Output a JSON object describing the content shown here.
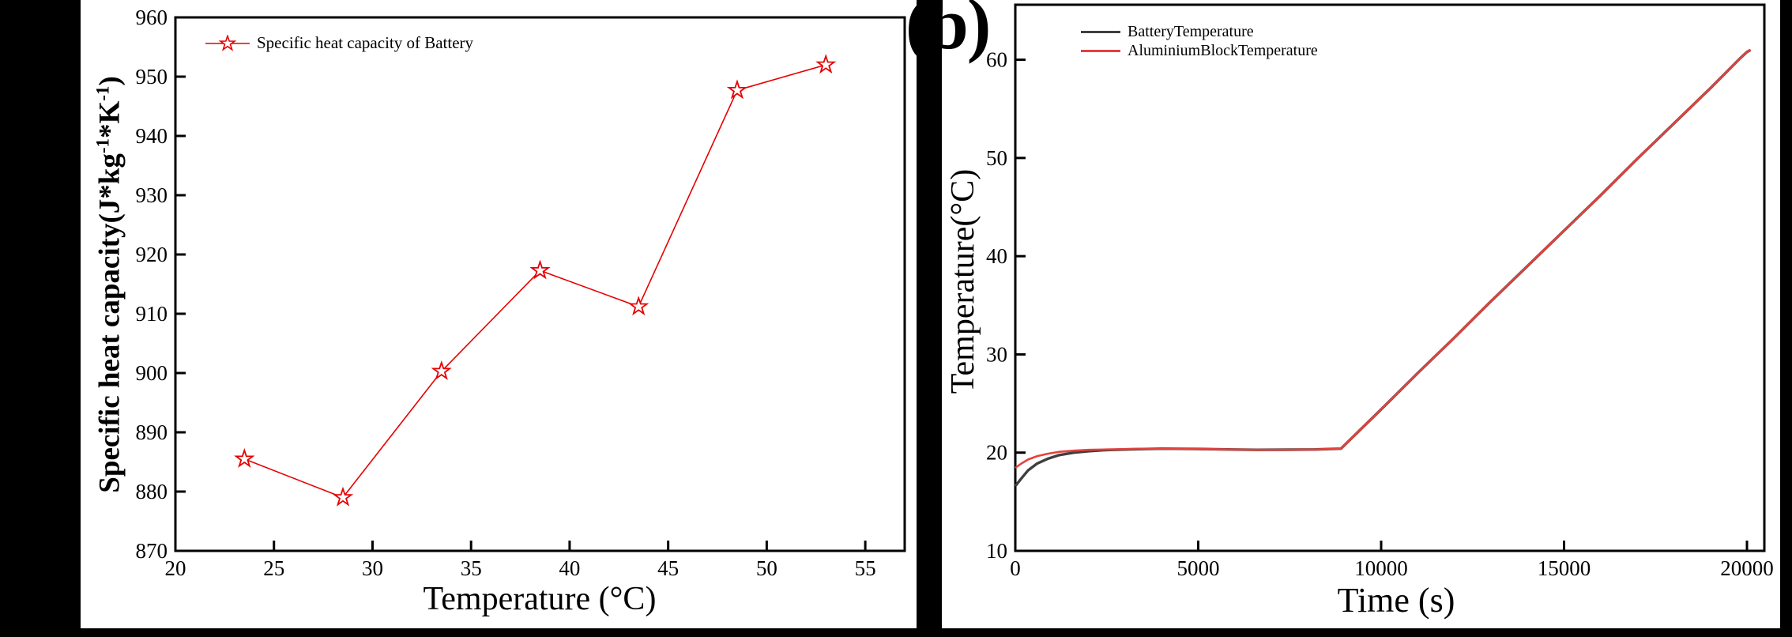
{
  "figure": {
    "panel_label": "(b)"
  },
  "colors": {
    "figure_bg": "#000000",
    "panel_bg": "#ffffff",
    "axis": "#000000",
    "chart1_series_red": "#e60000",
    "battery_line_black": "#3f3f3f",
    "aluminium_line_red": "#e6413c"
  },
  "chart_data": [
    {
      "type": "line",
      "title": "",
      "xlabel": "Temperature (°C)",
      "ylabel": "Specific heat capacity(J*kg-1*K-1)",
      "ylabel_parts": {
        "p1": "Specific heat capacity(J*kg",
        "s1": "-1",
        "p2": "*K",
        "s2": "-1",
        "p3": ")"
      },
      "legend": [
        "Specific heat capacity of Battery"
      ],
      "legend_position": "top-left",
      "marker": "open-star",
      "color": "#e60000",
      "x": [
        23.5,
        28.5,
        33.5,
        38.5,
        43.5,
        48.5,
        53
      ],
      "y": [
        885.5,
        879,
        900.3,
        917.3,
        911.2,
        947.7,
        952
      ],
      "xlim": [
        20,
        57
      ],
      "ylim": [
        870,
        960
      ],
      "x_ticks": [
        20,
        25,
        30,
        35,
        40,
        45,
        50,
        55
      ],
      "y_ticks": [
        870,
        880,
        890,
        900,
        910,
        920,
        930,
        940,
        950,
        960
      ],
      "grid": false
    },
    {
      "type": "line",
      "title": "",
      "xlabel": "Time (s)",
      "ylabel": "Temperature(°C)",
      "legend": [
        "BatteryTemperature",
        "AluminiumBlockTemperature"
      ],
      "legend_position": "top-left",
      "xlim": [
        0,
        20475
      ],
      "ylim": [
        10,
        65.6
      ],
      "x_ticks": [
        0,
        5000,
        10000,
        15000,
        20000
      ],
      "y_ticks": [
        10,
        20,
        30,
        40,
        50,
        60
      ],
      "grid": false,
      "series": [
        {
          "name": "BatteryTemperature",
          "color": "#3f3f3f",
          "points": [
            [
              0,
              16.6
            ],
            [
              150,
              17.3
            ],
            [
              350,
              18.2
            ],
            [
              600,
              18.9
            ],
            [
              900,
              19.4
            ],
            [
              1200,
              19.75
            ],
            [
              1600,
              20.0
            ],
            [
              2000,
              20.15
            ],
            [
              2500,
              20.27
            ],
            [
              3200,
              20.35
            ],
            [
              4000,
              20.4
            ],
            [
              5000,
              20.37
            ],
            [
              5800,
              20.32
            ],
            [
              6600,
              20.28
            ],
            [
              7400,
              20.3
            ],
            [
              8200,
              20.32
            ],
            [
              8900,
              20.4
            ],
            [
              10000,
              24.4
            ],
            [
              11000,
              28.1
            ],
            [
              12000,
              31.7
            ],
            [
              13000,
              35.4
            ],
            [
              14000,
              39.0
            ],
            [
              15000,
              42.6
            ],
            [
              16000,
              46.2
            ],
            [
              17000,
              49.9
            ],
            [
              18000,
              53.5
            ],
            [
              19000,
              57.1
            ],
            [
              19800,
              60.1
            ],
            [
              20000,
              60.8
            ],
            [
              20100,
              61.0
            ]
          ]
        },
        {
          "name": "AluminiumBlockTemperature",
          "color": "#e6413c",
          "points": [
            [
              0,
              18.45
            ],
            [
              150,
              18.85
            ],
            [
              350,
              19.3
            ],
            [
              600,
              19.65
            ],
            [
              900,
              19.9
            ],
            [
              1200,
              20.08
            ],
            [
              1600,
              20.2
            ],
            [
              2000,
              20.28
            ],
            [
              2500,
              20.32
            ],
            [
              3200,
              20.38
            ],
            [
              4000,
              20.4
            ],
            [
              5000,
              20.37
            ],
            [
              5800,
              20.32
            ],
            [
              6600,
              20.28
            ],
            [
              7400,
              20.3
            ],
            [
              8200,
              20.32
            ],
            [
              8900,
              20.4
            ],
            [
              10000,
              24.4
            ],
            [
              11000,
              28.1
            ],
            [
              12000,
              31.7
            ],
            [
              13000,
              35.4
            ],
            [
              14000,
              39.0
            ],
            [
              15000,
              42.6
            ],
            [
              16000,
              46.2
            ],
            [
              17000,
              49.9
            ],
            [
              18000,
              53.5
            ],
            [
              19000,
              57.1
            ],
            [
              19800,
              60.1
            ],
            [
              20000,
              60.8
            ],
            [
              20100,
              61.0
            ]
          ]
        }
      ]
    }
  ]
}
